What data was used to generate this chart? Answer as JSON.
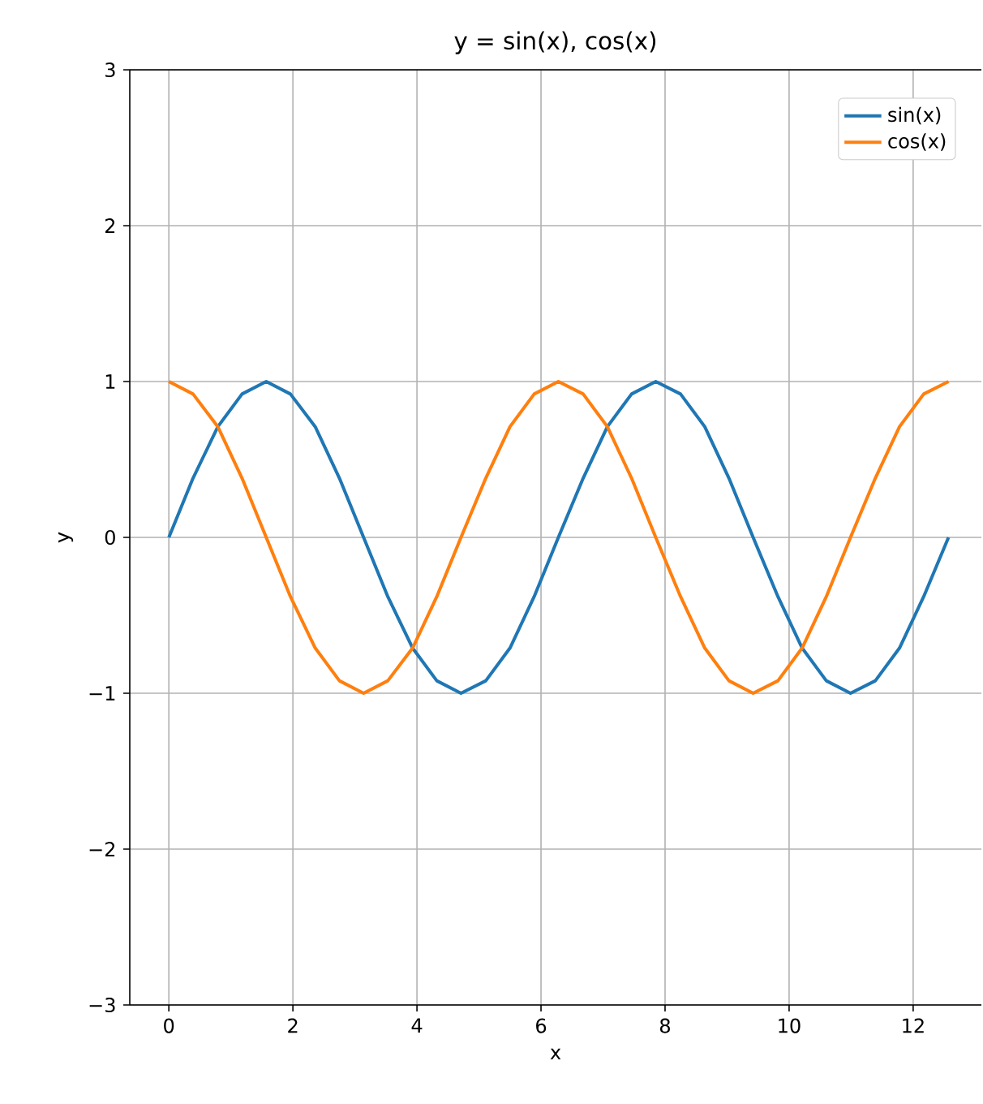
{
  "chart_data": {
    "type": "line",
    "title": "y = sin(x), cos(x)",
    "xlabel": "x",
    "ylabel": "y",
    "x": [
      0,
      0.39,
      0.79,
      1.18,
      1.57,
      1.96,
      2.36,
      2.75,
      3.14,
      3.53,
      3.93,
      4.32,
      4.71,
      5.11,
      5.5,
      5.89,
      6.28,
      6.68,
      7.07,
      7.46,
      7.85,
      8.25,
      8.64,
      9.03,
      9.42,
      9.82,
      10.21,
      10.6,
      10.99,
      11.39,
      11.78,
      12.17,
      12.57
    ],
    "series": [
      {
        "name": "sin(x)",
        "color": "#1f77b4",
        "values": [
          0,
          0.38,
          0.71,
          0.92,
          1,
          0.92,
          0.71,
          0.38,
          0,
          -0.38,
          -0.71,
          -0.92,
          -1,
          -0.92,
          -0.71,
          -0.38,
          0,
          0.38,
          0.71,
          0.92,
          1,
          0.92,
          0.71,
          0.38,
          0,
          -0.38,
          -0.71,
          -0.92,
          -1,
          -0.92,
          -0.71,
          -0.38,
          0
        ]
      },
      {
        "name": "cos(x)",
        "color": "#ff7f0e",
        "values": [
          1,
          0.92,
          0.71,
          0.38,
          0,
          -0.38,
          -0.71,
          -0.92,
          -1,
          -0.92,
          -0.71,
          -0.38,
          0,
          0.38,
          0.71,
          0.92,
          1,
          0.92,
          0.71,
          0.38,
          0,
          -0.38,
          -0.71,
          -0.92,
          -1,
          -0.92,
          -0.71,
          -0.38,
          0,
          0.38,
          0.71,
          0.92,
          1
        ]
      }
    ],
    "xlim": [
      -0.63,
      13.1
    ],
    "ylim": [
      -3,
      3
    ],
    "xticks": [
      0,
      2,
      4,
      6,
      8,
      10,
      12
    ],
    "yticks": [
      {
        "value": -3,
        "label": "−3"
      },
      {
        "value": -2,
        "label": "−2"
      },
      {
        "value": -1,
        "label": "−1"
      },
      0,
      1,
      2,
      3
    ],
    "grid": true,
    "legend": "top right"
  }
}
